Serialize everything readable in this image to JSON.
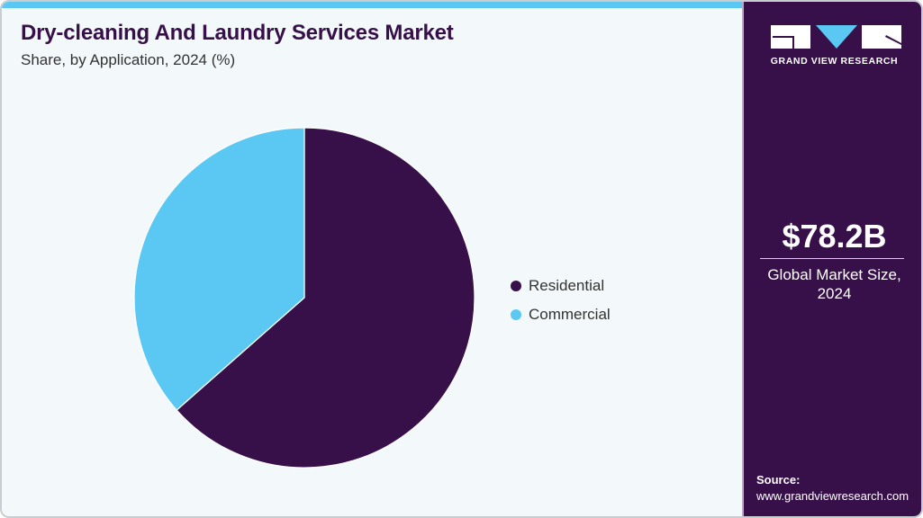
{
  "header": {
    "title": "Dry-cleaning And Laundry Services Market",
    "subtitle": "Share, by Application, 2024 (%)"
  },
  "colors": {
    "accent": "#5bc8f4",
    "brand_dark": "#37104a",
    "background": "#f3f8fb"
  },
  "legend": [
    {
      "label": "Residential",
      "color": "#37104a"
    },
    {
      "label": "Commercial",
      "color": "#5bc8f4"
    }
  ],
  "sidebar": {
    "logo_text": "GRAND VIEW RESEARCH",
    "market_value": "$78.2B",
    "market_label_line1": "Global Market Size,",
    "market_label_line2": "2024",
    "source_label": "Source:",
    "source_url": "www.grandviewresearch.com"
  },
  "chart_data": {
    "type": "pie",
    "title": "Dry-cleaning And Laundry Services Market",
    "subtitle": "Share, by Application, 2024 (%)",
    "categories": [
      "Residential",
      "Commercial"
    ],
    "values": [
      63.5,
      36.5
    ],
    "colors": [
      "#37104a",
      "#5bc8f4"
    ],
    "start_angle": "12 o'clock, clockwise",
    "legend_position": "right",
    "annotations": [
      "$78.2B Global Market Size, 2024"
    ]
  }
}
